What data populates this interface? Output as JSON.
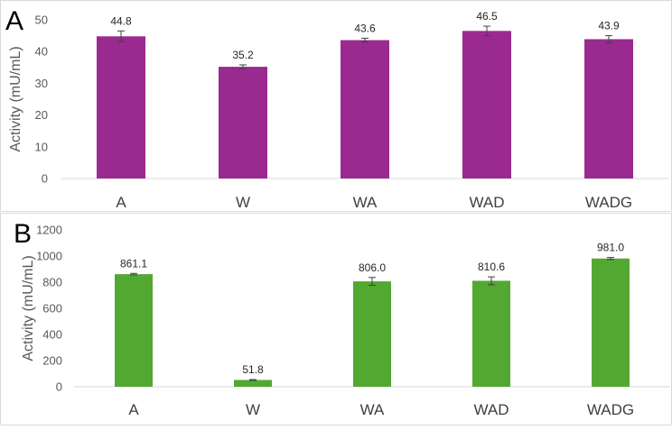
{
  "chart_data": [
    {
      "panel": "A",
      "type": "bar",
      "categories": [
        "A",
        "W",
        "WA",
        "WAD",
        "WADG"
      ],
      "values": [
        44.8,
        35.2,
        43.6,
        46.5,
        43.9
      ],
      "errors": [
        1.7,
        0.6,
        0.6,
        1.5,
        1.1
      ],
      "value_labels": [
        "44.8",
        "35.2",
        "43.6",
        "46.5",
        "43.9"
      ],
      "ylabel": "Activity (mU/mL)",
      "xlabel": "",
      "ylim": [
        0,
        50
      ],
      "yticks": [
        0,
        10,
        20,
        30,
        40,
        50
      ],
      "bar_color": "#9B2A90",
      "grid": false
    },
    {
      "panel": "B",
      "type": "bar",
      "categories": [
        "A",
        "W",
        "WA",
        "WAD",
        "WADG"
      ],
      "values": [
        861.1,
        51.8,
        806.0,
        810.6,
        981.0
      ],
      "errors": [
        6,
        3,
        30,
        30,
        8
      ],
      "value_labels": [
        "861.1",
        "51.8",
        "806.0",
        "810.6",
        "981.0"
      ],
      "ylabel": "Activity (mU/mL)",
      "xlabel": "",
      "ylim": [
        0,
        1200
      ],
      "yticks": [
        0,
        200,
        400,
        600,
        800,
        1000,
        1200
      ],
      "bar_color": "#52A830",
      "grid": false
    }
  ]
}
